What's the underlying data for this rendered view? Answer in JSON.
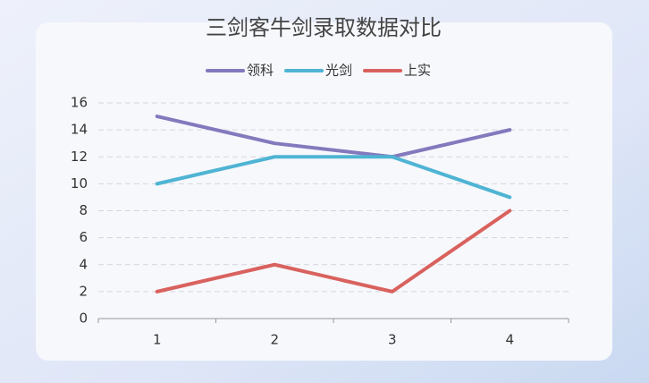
{
  "chart_data": {
    "type": "line",
    "title": "三剑客牛剑录取数据对比",
    "categories": [
      "1",
      "2",
      "3",
      "4"
    ],
    "series": [
      {
        "name": "领科",
        "color": "#8479bd",
        "values": [
          15,
          13,
          12,
          14
        ]
      },
      {
        "name": "光剑",
        "color": "#4fb4d3",
        "values": [
          10,
          12,
          12,
          9
        ]
      },
      {
        "name": "上实",
        "color": "#d9625e",
        "values": [
          2,
          4,
          2,
          8
        ]
      }
    ],
    "ylim": [
      0,
      16
    ],
    "yticks": [
      0,
      2,
      4,
      6,
      8,
      10,
      12,
      14,
      16
    ],
    "grid": true,
    "legend": "top"
  }
}
